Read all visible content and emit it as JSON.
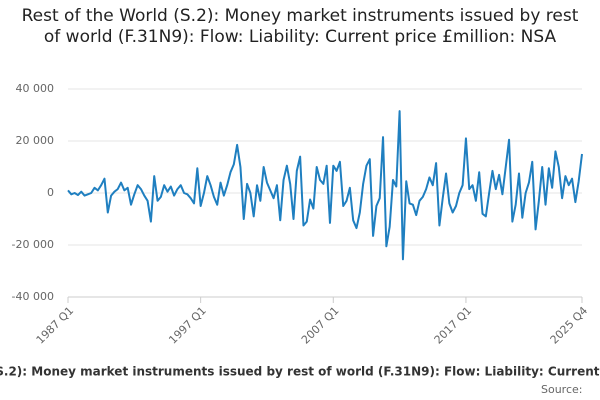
{
  "chart_data": {
    "type": "line",
    "title": "Rest of the World (S.2): Money market instruments issued by rest of world (F.31N9): Flow: Liability: Current price £million: NSA",
    "source": "Source:",
    "categories": [
      "1987 Q1",
      null,
      null,
      null,
      null,
      null,
      null,
      null,
      null,
      null,
      null,
      null,
      null,
      null,
      null,
      null,
      null,
      null,
      null,
      null,
      null,
      null,
      null,
      null,
      null,
      null,
      null,
      null,
      null,
      null,
      null,
      null,
      null,
      null,
      null,
      null,
      null,
      null,
      null,
      null,
      "1997 Q1",
      null,
      null,
      null,
      null,
      null,
      null,
      null,
      null,
      null,
      null,
      null,
      null,
      null,
      null,
      null,
      null,
      null,
      null,
      null,
      null,
      null,
      null,
      null,
      null,
      null,
      null,
      null,
      null,
      null,
      null,
      null,
      null,
      null,
      null,
      null,
      null,
      null,
      null,
      null,
      "2007 Q1",
      null,
      null,
      null,
      null,
      null,
      null,
      null,
      null,
      null,
      null,
      null,
      null,
      null,
      null,
      null,
      null,
      null,
      null,
      null,
      null,
      null,
      null,
      null,
      null,
      null,
      null,
      null,
      null,
      null,
      null,
      null,
      null,
      null,
      null,
      null,
      null,
      null,
      null,
      null,
      "2017 Q1",
      null,
      null,
      null,
      null,
      null,
      null,
      null,
      null,
      null,
      null,
      null,
      null,
      null,
      null,
      null,
      null,
      null,
      null,
      null,
      null,
      null,
      null,
      null,
      null,
      null,
      null,
      null,
      null,
      null,
      null,
      null,
      null,
      null,
      null,
      "2025 Q4"
    ],
    "series": [
      {
        "name": "Rest of the World (S.2): Money market instruments issued by rest of world (F.31N9): Flow: Liability: Current price £million: NSA",
        "color": "#1f7fc0",
        "values": [
          1000,
          -500,
          0,
          -800,
          500,
          -1000,
          -500,
          0,
          2000,
          1000,
          3000,
          5500,
          -7500,
          -1000,
          500,
          1500,
          4000,
          1000,
          2000,
          -4500,
          -500,
          3000,
          1500,
          -1000,
          -3000,
          -11000,
          6500,
          -3000,
          -1500,
          3000,
          500,
          2500,
          -1000,
          1500,
          3000,
          0,
          -500,
          -2000,
          -4000,
          9500,
          -5000,
          0,
          6500,
          3000,
          -1500,
          -4500,
          4000,
          -1000,
          3000,
          8000,
          11000,
          18500,
          10000,
          -10000,
          3500,
          0,
          -9000,
          3000,
          -3000,
          10000,
          4000,
          1000,
          -2000,
          3000,
          -10500,
          5000,
          10500,
          3500,
          -10000,
          8500,
          14000,
          -12500,
          -11000,
          -2500,
          -6000,
          10000,
          5000,
          3500,
          10500,
          -11500,
          10500,
          8500,
          12000,
          -5000,
          -3000,
          2000,
          -10500,
          -13500,
          -7500,
          3500,
          10500,
          13000,
          -16500,
          -5000,
          -2000,
          21500,
          -20500,
          -13000,
          5000,
          2500,
          31500,
          -25500,
          4500,
          -4000,
          -4500,
          -8500,
          -3000,
          -1500,
          1500,
          6000,
          3000,
          11500,
          -12500,
          -2000,
          7500,
          -4000,
          -7500,
          -5000,
          0,
          3000,
          21000,
          1500,
          3000,
          -3000,
          8000,
          -8000,
          -9000,
          0,
          8500,
          1500,
          7000,
          -500,
          10000,
          20500,
          -11000,
          -4500,
          7500,
          -9500,
          0,
          4000,
          12000,
          -14000,
          -3000,
          10000,
          -4500,
          9500,
          2000,
          16000,
          10000,
          -2000,
          6500,
          3000,
          5500,
          -3500,
          4500,
          15000
        ]
      }
    ],
    "ylim": [
      -40000,
      40000
    ],
    "yticks": [
      {
        "value": -40000,
        "label": "-40 000"
      },
      {
        "value": -20000,
        "label": "-20 000"
      },
      {
        "value": 0,
        "label": "0"
      },
      {
        "value": 20000,
        "label": "20 000"
      },
      {
        "value": 40000,
        "label": "40 000"
      }
    ],
    "grid": true
  }
}
